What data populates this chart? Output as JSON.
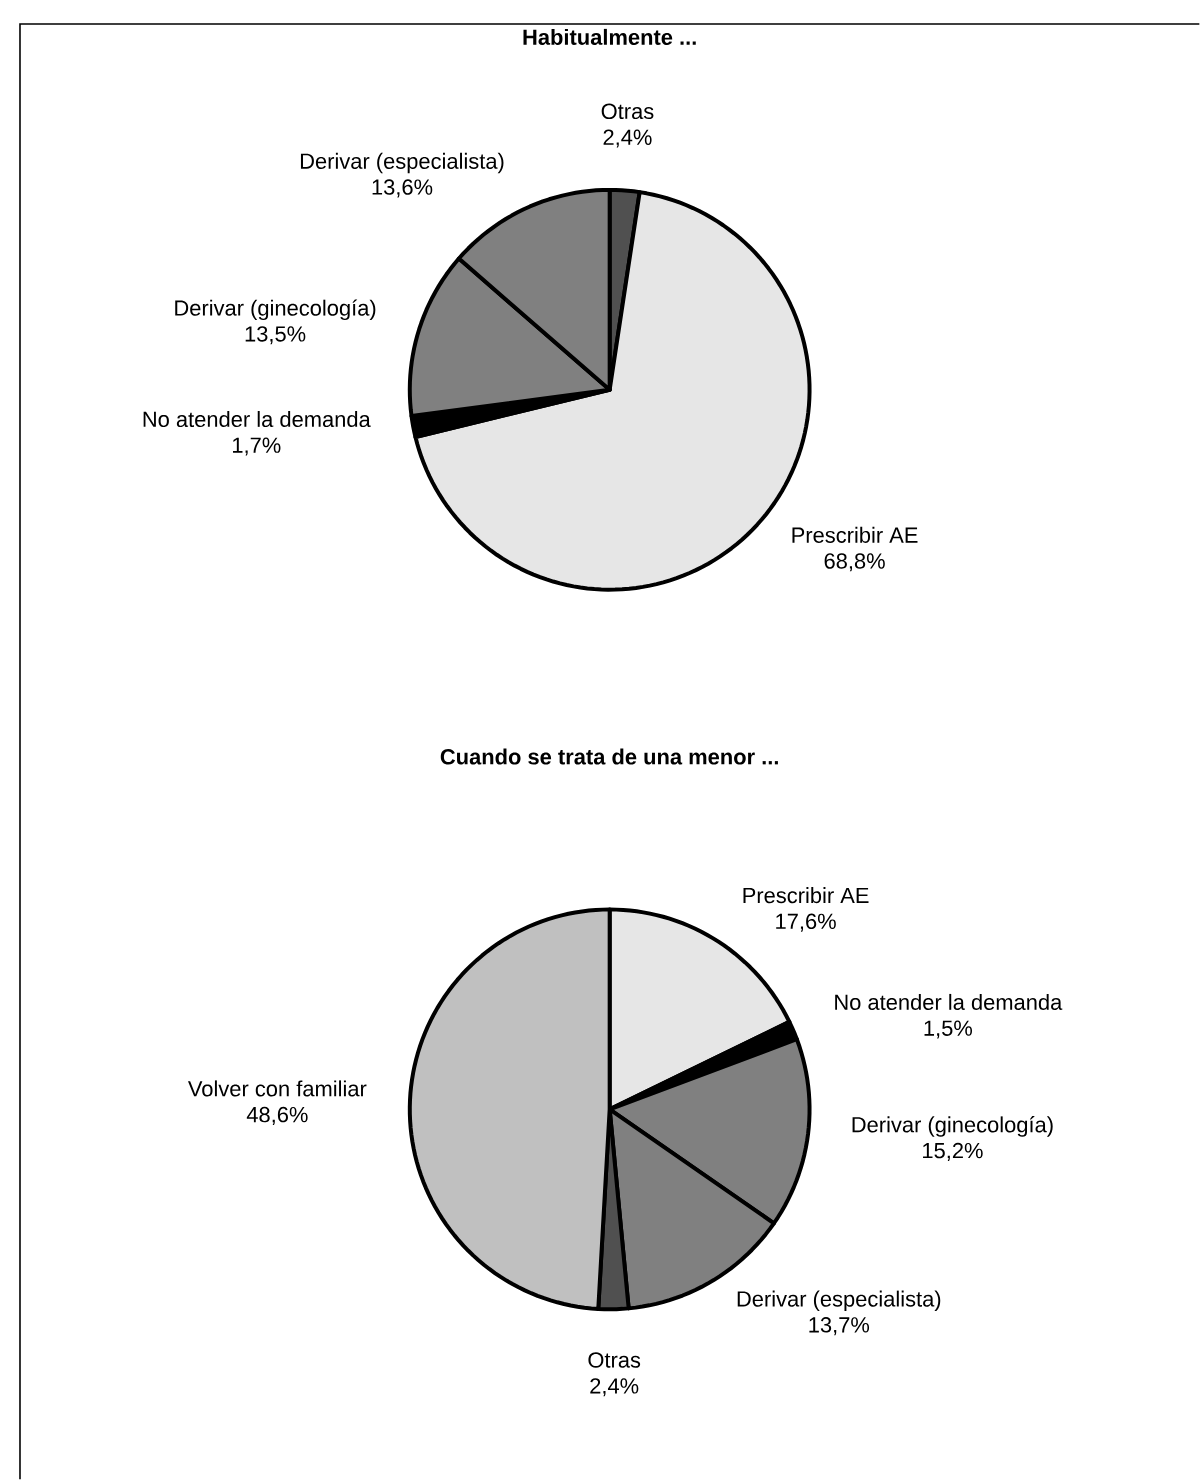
{
  "chart_data": [
    {
      "type": "pie",
      "title": "Habitualmente ...",
      "categories": [
        "Otras",
        "Prescribir AE",
        "No atender la demanda",
        "Derivar (ginecología)",
        "Derivar (especialista)"
      ],
      "values": [
        2.4,
        68.8,
        1.7,
        13.5,
        13.6
      ],
      "value_labels": [
        "2,4%",
        "68,8%",
        "1,7%",
        "13,5%",
        "13,6%"
      ],
      "colors": [
        "#505050",
        "#e6e6e6",
        "#000000",
        "#808080",
        "#808080"
      ]
    },
    {
      "type": "pie",
      "title": "Cuando se trata de una menor ...",
      "categories": [
        "Prescribir AE",
        "No atender la demanda",
        "Derivar (ginecología)",
        "Derivar (especialista)",
        "Otras",
        "Volver con familiar"
      ],
      "values": [
        17.6,
        1.5,
        15.2,
        13.7,
        2.4,
        48.6
      ],
      "value_labels": [
        "17,6%",
        "1,5%",
        "15,2%",
        "13,7%",
        "2,4%",
        "48,6%"
      ],
      "colors": [
        "#e6e6e6",
        "#000000",
        "#808080",
        "#808080",
        "#505050",
        "#c0c0c0"
      ]
    }
  ]
}
